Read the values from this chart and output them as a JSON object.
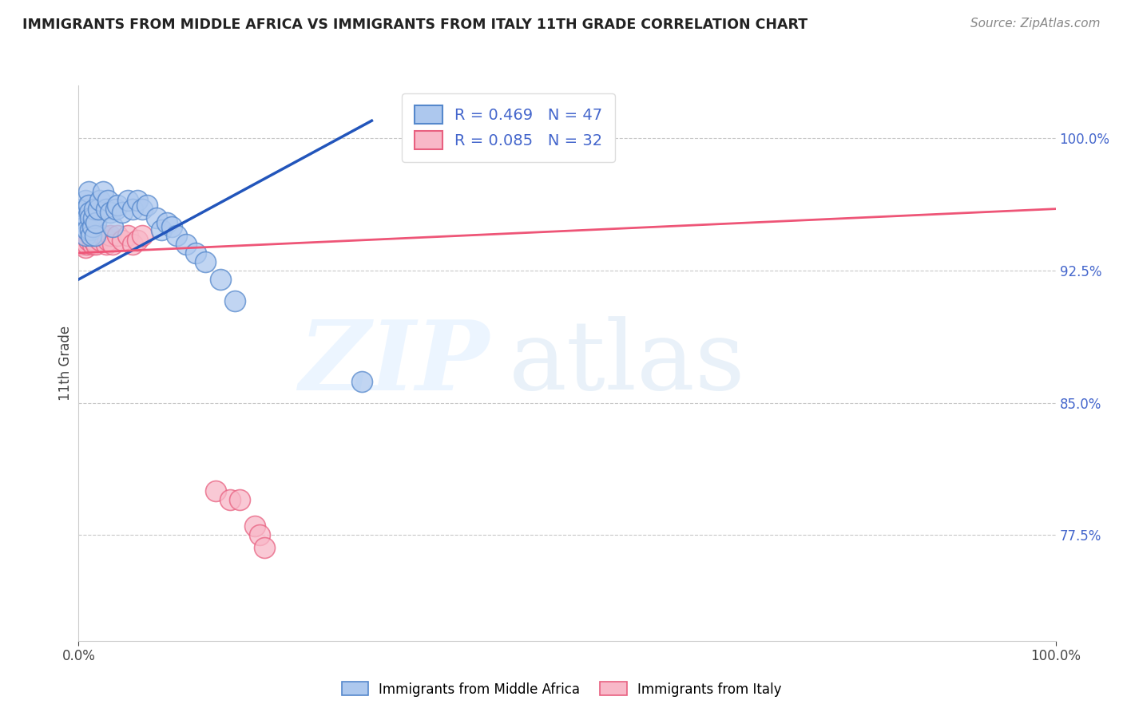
{
  "title": "IMMIGRANTS FROM MIDDLE AFRICA VS IMMIGRANTS FROM ITALY 11TH GRADE CORRELATION CHART",
  "source": "Source: ZipAtlas.com",
  "ylabel": "11th Grade",
  "legend_r1": "R = 0.469   N = 47",
  "legend_r2": "R = 0.085   N = 32",
  "blue_color": "#adc8ee",
  "blue_edge": "#5588cc",
  "pink_color": "#f8b8c8",
  "pink_edge": "#e86080",
  "line_blue_color": "#2255bb",
  "line_pink_color": "#ee5577",
  "tick_blue": "#4466cc",
  "xlim": [
    0.0,
    1.0
  ],
  "ylim": [
    0.715,
    1.03
  ],
  "ytick_positions": [
    0.775,
    0.85,
    0.925,
    1.0
  ],
  "ytick_labels": [
    "77.5%",
    "85.0%",
    "92.5%",
    "100.0%"
  ],
  "blue_scatter_x": [
    0.003,
    0.004,
    0.005,
    0.005,
    0.006,
    0.007,
    0.007,
    0.008,
    0.009,
    0.009,
    0.01,
    0.01,
    0.011,
    0.012,
    0.012,
    0.013,
    0.014,
    0.015,
    0.016,
    0.017,
    0.018,
    0.02,
    0.022,
    0.025,
    0.028,
    0.03,
    0.032,
    0.035,
    0.038,
    0.04,
    0.045,
    0.05,
    0.055,
    0.06,
    0.065,
    0.07,
    0.08,
    0.085,
    0.09,
    0.095,
    0.1,
    0.11,
    0.12,
    0.13,
    0.145,
    0.16,
    0.29
  ],
  "blue_scatter_y": [
    0.96,
    0.955,
    0.958,
    0.952,
    0.95,
    0.965,
    0.945,
    0.96,
    0.955,
    0.948,
    0.97,
    0.962,
    0.958,
    0.955,
    0.948,
    0.945,
    0.95,
    0.955,
    0.96,
    0.945,
    0.952,
    0.96,
    0.965,
    0.97,
    0.96,
    0.965,
    0.958,
    0.95,
    0.96,
    0.962,
    0.958,
    0.965,
    0.96,
    0.965,
    0.96,
    0.962,
    0.955,
    0.948,
    0.952,
    0.95,
    0.945,
    0.94,
    0.935,
    0.93,
    0.92,
    0.908,
    0.862
  ],
  "pink_scatter_x": [
    0.003,
    0.004,
    0.005,
    0.006,
    0.007,
    0.008,
    0.009,
    0.01,
    0.012,
    0.014,
    0.015,
    0.016,
    0.018,
    0.02,
    0.022,
    0.025,
    0.028,
    0.03,
    0.032,
    0.035,
    0.04,
    0.045,
    0.05,
    0.055,
    0.06,
    0.065,
    0.14,
    0.155,
    0.165,
    0.18,
    0.185,
    0.19
  ],
  "pink_scatter_y": [
    0.94,
    0.945,
    0.94,
    0.942,
    0.938,
    0.945,
    0.94,
    0.942,
    0.945,
    0.94,
    0.942,
    0.945,
    0.94,
    0.945,
    0.942,
    0.945,
    0.94,
    0.942,
    0.945,
    0.94,
    0.945,
    0.942,
    0.945,
    0.94,
    0.942,
    0.945,
    0.8,
    0.795,
    0.795,
    0.78,
    0.775,
    0.768
  ],
  "blue_line_x": [
    0.0,
    0.3
  ],
  "blue_line_y": [
    0.92,
    1.01
  ],
  "pink_line_x": [
    0.0,
    1.0
  ],
  "pink_line_y": [
    0.935,
    0.96
  ]
}
